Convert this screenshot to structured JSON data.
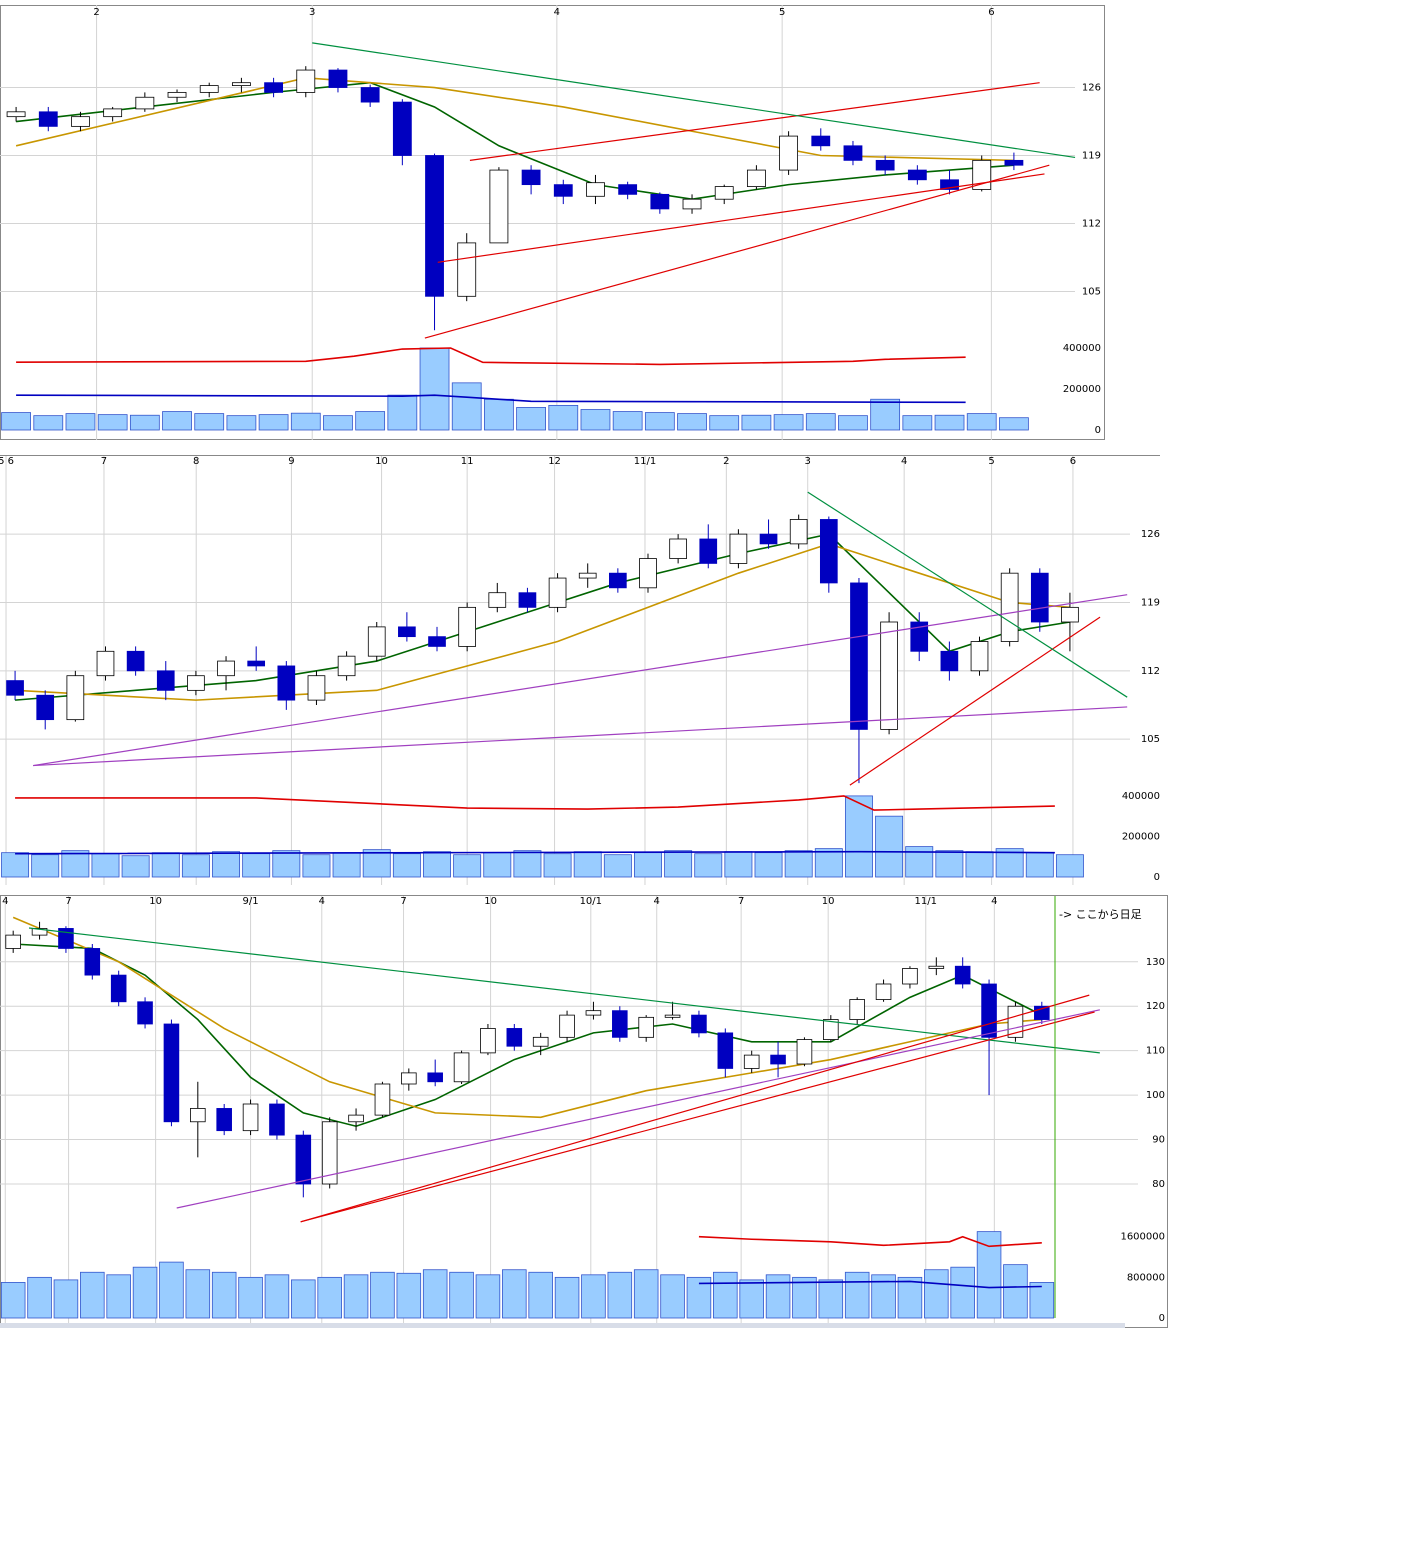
{
  "chart_data": [
    {
      "type": "candlestick",
      "xlim": [
        -0.5,
        31.5
      ],
      "xticks": [
        {
          "value": 2.5,
          "label": "2"
        },
        {
          "value": 9.2,
          "label": "3"
        },
        {
          "value": 16.8,
          "label": "4"
        },
        {
          "value": 23.8,
          "label": "5"
        },
        {
          "value": 30.3,
          "label": "6"
        }
      ],
      "ylim": [
        100,
        134.5
      ],
      "yticks": [
        105,
        112,
        119,
        126
      ],
      "open": [
        123,
        123.5,
        122,
        123,
        123.8,
        125,
        125.5,
        126.2,
        126.5,
        125.5,
        127.8,
        126,
        124.5,
        119,
        104.5,
        110,
        117.5,
        116,
        114.8,
        116,
        115,
        113.5,
        114.5,
        115.8,
        117.5,
        121,
        120,
        118.5,
        117.5,
        116.5,
        115.5,
        118.5
      ],
      "high": [
        124,
        124,
        123.5,
        124,
        125.5,
        125.8,
        126.5,
        127,
        127,
        128.2,
        128,
        126.3,
        124.8,
        119.2,
        111,
        117.8,
        118,
        116.5,
        117,
        116.3,
        115.2,
        115,
        116,
        118,
        121.5,
        121.8,
        120.5,
        119,
        118,
        117.5,
        119,
        119.3
      ],
      "low": [
        122.5,
        121.5,
        121.5,
        122.5,
        123.5,
        124.5,
        125,
        125.5,
        125,
        125,
        125.5,
        124,
        118,
        101,
        104,
        110,
        115,
        114,
        114,
        114.5,
        113,
        113,
        114,
        115.5,
        117,
        119.5,
        118,
        117,
        116,
        115,
        115.3,
        117.5
      ],
      "close": [
        123.5,
        122,
        123,
        123.8,
        125,
        125.5,
        126.2,
        126.5,
        125.5,
        127.8,
        126,
        124.5,
        119,
        104.5,
        110,
        117.5,
        116,
        114.8,
        116.2,
        115,
        113.5,
        114.5,
        115.8,
        117.5,
        121,
        120,
        118.5,
        117.5,
        116.5,
        115.5,
        118.5,
        118
      ],
      "up_color": "#ffffff",
      "down_color": "#0000c0",
      "series": [
        {
          "color": "#006400",
          "x": [
            0,
            4,
            8,
            11,
            13,
            15,
            18,
            21,
            24,
            27,
            31
          ],
          "values": [
            122.5,
            124,
            125.5,
            126.5,
            124,
            120,
            116,
            114.5,
            116,
            117,
            118
          ]
        },
        {
          "color": "#c89600",
          "x": [
            0,
            9,
            13,
            17,
            21,
            25,
            31
          ],
          "values": [
            120,
            127,
            126,
            124,
            121.5,
            119,
            118.5
          ]
        }
      ],
      "trendlines": [
        {
          "color": "#e00000",
          "x": [
            14.1,
            31.8
          ],
          "values": [
            118.5,
            126.5
          ]
        },
        {
          "color": "#e00000",
          "x": [
            13.1,
            31.95
          ],
          "values": [
            108,
            117.1
          ]
        },
        {
          "color": "#e00000",
          "x": [
            12.7,
            32.1
          ],
          "values": [
            100.2,
            118
          ]
        },
        {
          "color": "#009040",
          "x": [
            9.2,
            32.9
          ],
          "values": [
            130.6,
            118.8
          ]
        }
      ],
      "volume": [
        85000,
        70000,
        80000,
        75000,
        72000,
        90000,
        80000,
        70000,
        75000,
        82000,
        70000,
        90000,
        170000,
        400000,
        230000,
        150000,
        110000,
        120000,
        100000,
        90000,
        85000,
        80000,
        70000,
        72000,
        75000,
        80000,
        70000,
        150000,
        70000,
        72000,
        80000,
        60000
      ],
      "volume_color": "#99ccff",
      "vlim": [
        0,
        439000
      ],
      "vticks": [
        0,
        200000,
        400000
      ],
      "volume_series": [
        {
          "color": "#e00000",
          "x": [
            0,
            9,
            10.5,
            12,
            13.5,
            14.5,
            20,
            26,
            27,
            29.5
          ],
          "values": [
            331000,
            335000,
            360000,
            395000,
            400000,
            330000,
            320000,
            335000,
            345000,
            355000
          ]
        },
        {
          "color": "#0000c0",
          "x": [
            0,
            12,
            13,
            14,
            16,
            29.5
          ],
          "values": [
            170000,
            165000,
            170000,
            160000,
            140000,
            135000
          ]
        }
      ]
    },
    {
      "type": "candlestick",
      "xlim": [
        -0.5,
        35.5
      ],
      "xticks": [
        {
          "value": -0.3,
          "label": "5 6"
        },
        {
          "value": 2.95,
          "label": "7"
        },
        {
          "value": 6.01,
          "label": "8"
        },
        {
          "value": 9.17,
          "label": "9"
        },
        {
          "value": 12.16,
          "label": "10"
        },
        {
          "value": 15.0,
          "label": "11"
        },
        {
          "value": 17.9,
          "label": "12"
        },
        {
          "value": 20.9,
          "label": "11/1"
        },
        {
          "value": 23.6,
          "label": "2"
        },
        {
          "value": 26.3,
          "label": "3"
        },
        {
          "value": 29.5,
          "label": "4"
        },
        {
          "value": 32.4,
          "label": "5"
        },
        {
          "value": 35.1,
          "label": "6"
        }
      ],
      "ylim": [
        100,
        134
      ],
      "yticks": [
        105,
        112,
        119,
        126
      ],
      "open": [
        111,
        109.5,
        107,
        111.5,
        114,
        112,
        110,
        111.5,
        113,
        112.5,
        109,
        111.5,
        113.5,
        116.5,
        115.5,
        114.5,
        118.5,
        120,
        118.5,
        121.5,
        122,
        120.5,
        123.5,
        125.5,
        123,
        126,
        125,
        127.5,
        121,
        106,
        117,
        114,
        112,
        115,
        122,
        117
      ],
      "high": [
        112,
        110,
        112,
        114.5,
        114.5,
        113,
        112,
        113.5,
        114.5,
        113,
        112,
        114,
        117,
        118,
        116.5,
        119,
        121,
        120.5,
        122,
        123,
        122.5,
        124,
        126,
        127,
        126.5,
        127.5,
        128,
        127.8,
        121.5,
        118,
        118,
        115,
        115.5,
        122.5,
        122.5,
        120
      ],
      "low": [
        109,
        106,
        106.8,
        111,
        111.5,
        109,
        109.5,
        110,
        112,
        108,
        108.5,
        111,
        113,
        115,
        114,
        114,
        118,
        118,
        118,
        120.5,
        120,
        120,
        123,
        122.5,
        122.5,
        124.5,
        124.5,
        120,
        100.5,
        105.5,
        113,
        111,
        111.5,
        114.5,
        116,
        114
      ],
      "close": [
        109.5,
        107,
        111.5,
        114,
        112,
        110,
        111.5,
        113,
        112.5,
        109,
        111.5,
        113.5,
        116.5,
        115.5,
        114.5,
        118.5,
        120,
        118.5,
        121.5,
        122,
        120.5,
        123.5,
        125.5,
        123,
        126,
        125,
        127.5,
        121,
        106,
        117,
        114,
        112,
        115,
        122,
        117,
        118.5
      ],
      "up_color": "#ffffff",
      "down_color": "#0000c0",
      "series": [
        {
          "color": "#006400",
          "x": [
            0,
            4,
            8,
            12,
            16,
            20,
            24,
            27,
            29,
            31,
            33,
            35
          ],
          "values": [
            109,
            110,
            111,
            113,
            117,
            121,
            124,
            126,
            120,
            114,
            116,
            117
          ]
        },
        {
          "color": "#c89600",
          "x": [
            0,
            6,
            12,
            18,
            24,
            27,
            30,
            33,
            35
          ],
          "values": [
            110,
            109,
            110,
            115,
            122,
            125,
            122,
            119,
            118.5
          ]
        }
      ],
      "trendlines": [
        {
          "color": "#a040c0",
          "x": [
            0.6,
            36.9
          ],
          "values": [
            102.3,
            119.8
          ]
        },
        {
          "color": "#a040c0",
          "x": [
            0.6,
            36.9
          ],
          "values": [
            102.3,
            108.3
          ]
        },
        {
          "color": "#e00000",
          "x": [
            27.7,
            36.0
          ],
          "values": [
            100.3,
            117.5
          ]
        },
        {
          "color": "#009040",
          "x": [
            26.3,
            36.9
          ],
          "values": [
            130.3,
            109.3
          ]
        }
      ],
      "volume": [
        120000,
        110000,
        130000,
        115000,
        105000,
        120000,
        110000,
        125000,
        115000,
        130000,
        110000,
        120000,
        135000,
        115000,
        125000,
        110000,
        120000,
        130000,
        115000,
        125000,
        110000,
        120000,
        130000,
        115000,
        125000,
        120000,
        130000,
        140000,
        400000,
        300000,
        150000,
        130000,
        125000,
        140000,
        120000,
        110000
      ],
      "volume_color": "#99ccff",
      "vlim": [
        0,
        439000
      ],
      "vticks": [
        0,
        200000,
        400000
      ],
      "volume_series": [
        {
          "color": "#e00000",
          "x": [
            0,
            8,
            15,
            19,
            22,
            26,
            27.5,
            28.5,
            30,
            34.5
          ],
          "values": [
            390000,
            390000,
            340000,
            335000,
            345000,
            380000,
            400000,
            330000,
            335000,
            350000
          ]
        },
        {
          "color": "#0000c0",
          "x": [
            0,
            28,
            34.5
          ],
          "values": [
            115000,
            125000,
            120000
          ]
        }
      ]
    },
    {
      "type": "candlestick",
      "xlim": [
        -0.5,
        39.5
      ],
      "xticks": [
        {
          "value": -0.3,
          "label": "4"
        },
        {
          "value": 2.1,
          "label": "7"
        },
        {
          "value": 5.4,
          "label": "10"
        },
        {
          "value": 9.0,
          "label": "9/1"
        },
        {
          "value": 11.7,
          "label": "4"
        },
        {
          "value": 14.8,
          "label": "7"
        },
        {
          "value": 18.1,
          "label": "10"
        },
        {
          "value": 21.9,
          "label": "10/1"
        },
        {
          "value": 24.4,
          "label": "4"
        },
        {
          "value": 27.6,
          "label": "7"
        },
        {
          "value": 30.9,
          "label": "10"
        },
        {
          "value": 34.6,
          "label": "11/1"
        },
        {
          "value": 37.2,
          "label": "4"
        }
      ],
      "ylim": [
        71,
        143
      ],
      "yticks": [
        80,
        90,
        100,
        110,
        120,
        130
      ],
      "open": [
        133,
        136,
        137.5,
        133,
        127,
        121,
        116,
        94,
        97,
        92,
        98,
        91,
        80,
        94,
        95.5,
        102.5,
        105,
        103,
        109.5,
        115,
        111,
        113,
        118,
        119,
        113,
        117.5,
        118,
        114,
        106,
        109,
        107,
        112.5,
        117,
        121.5,
        125,
        128.5,
        129,
        125,
        113,
        120
      ],
      "high": [
        137,
        139,
        138,
        134,
        128,
        122,
        117,
        103,
        98,
        99,
        99,
        92,
        95,
        97,
        103,
        106,
        108,
        110,
        116,
        116,
        114,
        119,
        121,
        120,
        118,
        121,
        119,
        115,
        110,
        112,
        113,
        118,
        122,
        126,
        129,
        131,
        131,
        126,
        121,
        121
      ],
      "low": [
        132,
        135,
        132,
        126,
        120,
        115,
        93,
        86,
        91,
        91,
        90,
        77,
        79,
        92,
        95,
        101,
        102,
        102.5,
        109,
        110,
        109,
        112,
        117,
        112,
        112,
        117,
        113,
        104,
        105,
        104,
        106.5,
        112,
        116,
        121,
        124,
        127,
        124,
        100,
        112,
        116
      ],
      "close": [
        136,
        137.5,
        133,
        127,
        121,
        116,
        94,
        97,
        92,
        98,
        91,
        80,
        94,
        95.5,
        102.5,
        105,
        103,
        109.5,
        115,
        111,
        113,
        118,
        119,
        113,
        117.5,
        118,
        114,
        106,
        109,
        107,
        112.5,
        117,
        121.5,
        125,
        128.5,
        129,
        125,
        113,
        120,
        117
      ],
      "up_color": "#ffffff",
      "down_color": "#0000c0",
      "series": [
        {
          "color": "#006400",
          "x": [
            0,
            3,
            5,
            7,
            9,
            11,
            13,
            16,
            19,
            22,
            25,
            28,
            31,
            34,
            36,
            38,
            39
          ],
          "values": [
            134,
            133,
            127,
            117,
            104,
            96,
            93,
            99,
            108,
            114,
            116,
            112,
            112,
            122,
            127,
            121,
            118
          ]
        },
        {
          "color": "#c89600",
          "x": [
            0,
            4,
            8,
            12,
            16,
            20,
            24,
            28,
            31,
            34,
            37,
            39
          ],
          "values": [
            140,
            130,
            115,
            103,
            96,
            95,
            101,
            105,
            108,
            112,
            116,
            117
          ]
        }
      ],
      "trendlines": [
        {
          "color": "#009040",
          "x": [
            0.6,
            41.2
          ],
          "values": [
            137.6,
            109.5
          ]
        },
        {
          "color": "#a040c0",
          "x": [
            6.2,
            41.2
          ],
          "values": [
            74.6,
            119.2
          ]
        },
        {
          "color": "#e00000",
          "x": [
            10.9,
            41.0
          ],
          "values": [
            71.5,
            118.7
          ]
        },
        {
          "color": "#e00000",
          "x": [
            10.9,
            40.8
          ],
          "values": [
            71.5,
            122.5
          ]
        }
      ],
      "volume": [
        700000,
        800000,
        750000,
        900000,
        850000,
        1000000,
        1100000,
        950000,
        900000,
        800000,
        850000,
        750000,
        800000,
        850000,
        900000,
        880000,
        950000,
        900000,
        850000,
        950000,
        900000,
        800000,
        850000,
        900000,
        950000,
        850000,
        800000,
        900000,
        750000,
        850000,
        800000,
        750000,
        900000,
        850000,
        800000,
        950000,
        1000000,
        1700000,
        1050000,
        700000
      ],
      "volume_color": "#99ccff",
      "vlim": [
        0,
        1850000
      ],
      "vticks": [
        0,
        800000,
        1600000
      ],
      "volume_series": [
        {
          "color": "#e00000",
          "x": [
            26,
            28,
            31,
            33,
            35.5,
            36,
            37,
            39
          ],
          "values": [
            1600000,
            1550000,
            1500000,
            1430000,
            1500000,
            1600000,
            1410000,
            1480000
          ]
        },
        {
          "color": "#0000c0",
          "x": [
            26,
            34,
            37,
            39
          ],
          "values": [
            680000,
            720000,
            600000,
            620000
          ]
        }
      ],
      "annotation": {
        "text": "-> ここから日足",
        "x": 39.5,
        "color": "#33aa00"
      }
    }
  ]
}
